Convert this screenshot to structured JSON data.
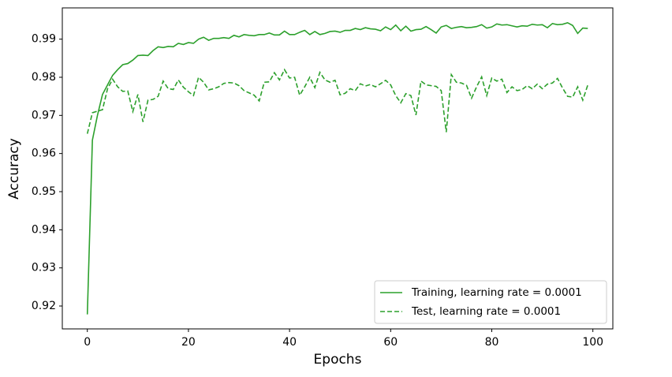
{
  "chart_data": {
    "type": "line",
    "xlabel": "Epochs",
    "ylabel": "Accuracy",
    "x": [
      0,
      1,
      2,
      3,
      4,
      5,
      6,
      7,
      8,
      9,
      10,
      11,
      12,
      13,
      14,
      15,
      16,
      17,
      18,
      19,
      20,
      21,
      22,
      23,
      24,
      25,
      26,
      27,
      28,
      29,
      30,
      31,
      32,
      33,
      34,
      35,
      36,
      37,
      38,
      39,
      40,
      41,
      42,
      43,
      44,
      45,
      46,
      47,
      48,
      49,
      50,
      51,
      52,
      53,
      54,
      55,
      56,
      57,
      58,
      59,
      60,
      61,
      62,
      63,
      64,
      65,
      66,
      67,
      68,
      69,
      70,
      71,
      72,
      73,
      74,
      75,
      76,
      77,
      78,
      79,
      80,
      81,
      82,
      83,
      84,
      85,
      86,
      87,
      88,
      89,
      90,
      91,
      92,
      93,
      94,
      95,
      96,
      97,
      98,
      99
    ],
    "series": [
      {
        "name": "Training, learning rate = 0.0001",
        "color": "#2ca02c",
        "linestyle": "solid",
        "values": [
          0.9178,
          0.9635,
          0.97,
          0.9755,
          0.978,
          0.9805,
          0.982,
          0.9833,
          0.9836,
          0.9845,
          0.9857,
          0.9858,
          0.9857,
          0.987,
          0.988,
          0.9878,
          0.9881,
          0.988,
          0.9889,
          0.9886,
          0.9891,
          0.9889,
          0.99,
          0.9905,
          0.9897,
          0.9902,
          0.9902,
          0.9904,
          0.9902,
          0.991,
          0.9906,
          0.9912,
          0.991,
          0.9909,
          0.9912,
          0.9912,
          0.9916,
          0.9911,
          0.9911,
          0.9921,
          0.9912,
          0.9912,
          0.9918,
          0.9923,
          0.9912,
          0.992,
          0.9912,
          0.9915,
          0.992,
          0.9921,
          0.9918,
          0.9923,
          0.9923,
          0.9928,
          0.9925,
          0.993,
          0.9927,
          0.9926,
          0.9922,
          0.9932,
          0.9925,
          0.9937,
          0.9922,
          0.9934,
          0.9921,
          0.9925,
          0.9926,
          0.9933,
          0.9925,
          0.9916,
          0.9932,
          0.9936,
          0.9928,
          0.9931,
          0.9933,
          0.993,
          0.9931,
          0.9933,
          0.9938,
          0.9929,
          0.9932,
          0.994,
          0.9937,
          0.9938,
          0.9935,
          0.9932,
          0.9935,
          0.9934,
          0.9939,
          0.9937,
          0.9938,
          0.993,
          0.9941,
          0.9938,
          0.9939,
          0.9943,
          0.9936,
          0.9915,
          0.9929,
          0.9928
        ]
      },
      {
        "name": "Test, learning rate = 0.0001",
        "color": "#2ca02c",
        "linestyle": "dashed",
        "values": [
          0.9652,
          0.9707,
          0.9711,
          0.9715,
          0.977,
          0.9795,
          0.9775,
          0.9763,
          0.9764,
          0.971,
          0.9755,
          0.9683,
          0.974,
          0.9742,
          0.975,
          0.979,
          0.977,
          0.9768,
          0.9793,
          0.9774,
          0.9762,
          0.9752,
          0.98,
          0.9787,
          0.9767,
          0.977,
          0.9775,
          0.9784,
          0.9786,
          0.9785,
          0.9778,
          0.9765,
          0.9759,
          0.9753,
          0.9738,
          0.9787,
          0.9788,
          0.9812,
          0.9793,
          0.982,
          0.9798,
          0.98,
          0.9753,
          0.9775,
          0.98,
          0.9773,
          0.9813,
          0.9793,
          0.9787,
          0.9792,
          0.9754,
          0.9758,
          0.977,
          0.9765,
          0.9783,
          0.9777,
          0.9781,
          0.9775,
          0.9783,
          0.9792,
          0.978,
          0.9752,
          0.9733,
          0.9757,
          0.9752,
          0.9701,
          0.979,
          0.978,
          0.9778,
          0.9776,
          0.9765,
          0.9656,
          0.9807,
          0.9787,
          0.9785,
          0.9779,
          0.9745,
          0.9775,
          0.9801,
          0.9752,
          0.9798,
          0.979,
          0.9795,
          0.976,
          0.9775,
          0.9765,
          0.9768,
          0.9778,
          0.977,
          0.9782,
          0.977,
          0.9782,
          0.9785,
          0.9797,
          0.9772,
          0.975,
          0.9748,
          0.9775,
          0.974,
          0.978
        ]
      }
    ],
    "xlim": [
      -4.95,
      103.95
    ],
    "xticks": [
      0,
      20,
      40,
      60,
      80,
      100
    ],
    "ylim": [
      0.914,
      0.9982
    ],
    "yticks": [
      0.92,
      0.93,
      0.94,
      0.95,
      0.96,
      0.97,
      0.98,
      0.99
    ],
    "grid": false,
    "legend": "lower right"
  }
}
